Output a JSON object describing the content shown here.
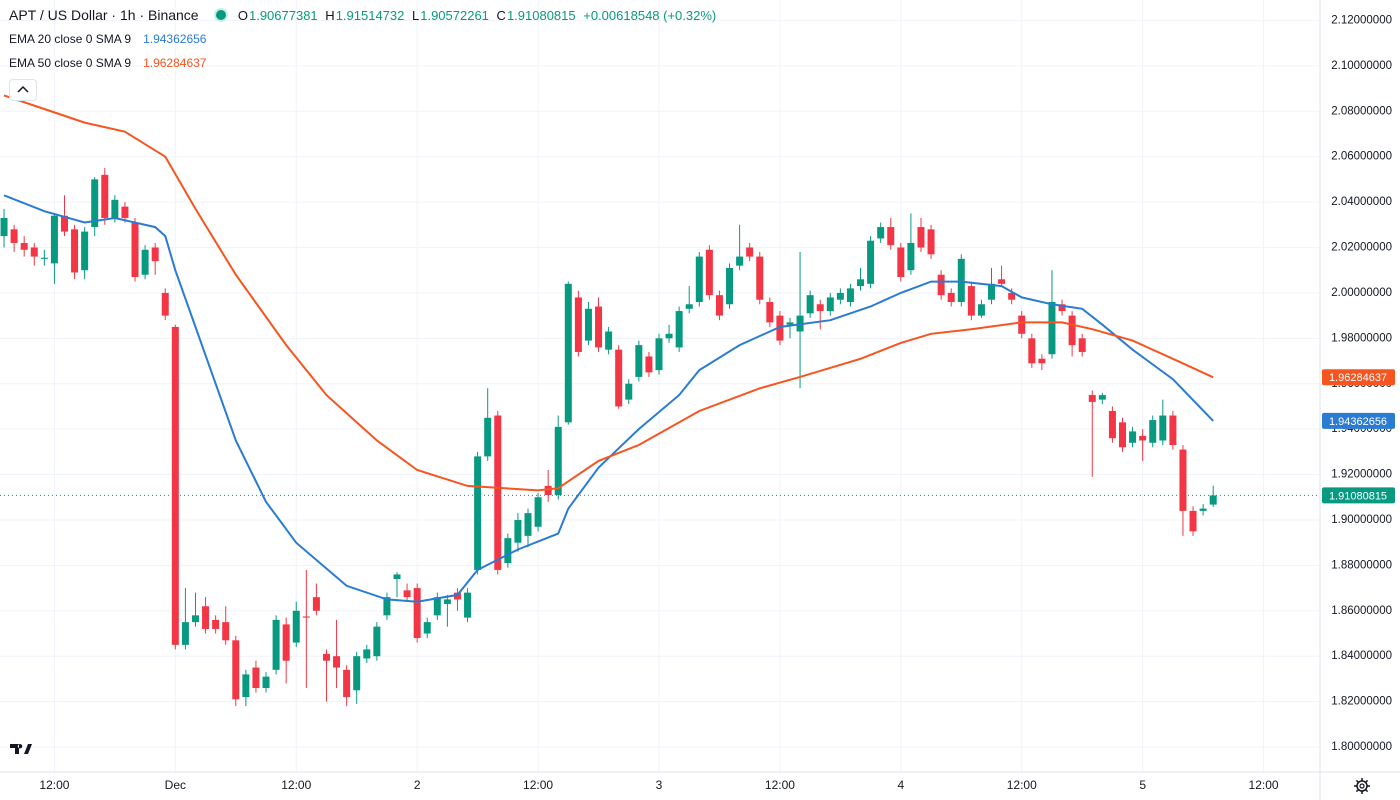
{
  "chart_data": {
    "type": "candlestick",
    "title": "APT / US Dollar · 1h · Binance",
    "header": {
      "o_label": "O",
      "o": "1.90677381",
      "h_label": "H",
      "h": "1.91514732",
      "l_label": "L",
      "l": "1.90572261",
      "c_label": "C",
      "c": "1.91080815",
      "change": "+0.00618548 (+0.32%)"
    },
    "up_color": "#089981",
    "down_color": "#f23645",
    "open": [
      2.025,
      2.028,
      2.022,
      2.02,
      2.015,
      2.013,
      2.034,
      2.028,
      2.01,
      2.029,
      2.052,
      2.033,
      2.038,
      2.031,
      2.008,
      2.02,
      2.0,
      1.985,
      1.845,
      1.855,
      1.862,
      1.856,
      1.855,
      1.847,
      1.822,
      1.835,
      1.826,
      1.834,
      1.854,
      1.846,
      1.8575,
      1.866,
      1.841,
      1.84,
      1.834,
      1.825,
      1.839,
      1.84,
      1.858,
      1.874,
      1.869,
      1.87,
      1.85,
      1.858,
      1.863,
      1.868,
      1.857,
      1.878,
      1.928,
      1.946,
      1.881,
      1.89,
      1.893,
      1.897,
      1.915,
      1.911,
      1.943,
      1.998,
      1.979,
      1.994,
      1.975,
      1.975,
      1.953,
      1.963,
      1.972,
      1.966,
      1.98,
      1.976,
      1.993,
      1.996,
      2.019,
      1.999,
      1.995,
      2.012,
      2.02,
      2.016,
      1.996,
      1.99,
      1.986,
      1.983,
      1.991,
      1.995,
      1.992,
      1.997,
      1.996,
      2.003,
      2.004,
      2.024,
      2.029,
      2.02,
      2.01,
      2.029,
      2.028,
      2.008,
      2.0,
      1.996,
      2.003,
      1.99,
      1.997,
      2.006,
      2.0,
      1.99,
      1.98,
      1.971,
      1.973,
      1.995,
      1.99,
      1.98,
      1.955,
      1.953,
      1.948,
      1.943,
      1.934,
      1.937,
      1.934,
      1.935,
      1.946,
      1.931,
      1.904,
      1.904,
      1.90677381
    ],
    "high": [
      2.037,
      2.03,
      2.025,
      2.022,
      2.019,
      2.035,
      2.043,
      2.03,
      2.029,
      2.051,
      2.055,
      2.043,
      2.04,
      2.033,
      2.021,
      2.022,
      2.002,
      1.986,
      1.87,
      1.868,
      1.866,
      1.858,
      1.862,
      1.849,
      1.834,
      1.838,
      1.833,
      1.858,
      1.857,
      1.864,
      1.878,
      1.872,
      1.843,
      1.856,
      1.836,
      1.842,
      1.845,
      1.855,
      1.868,
      1.877,
      1.872,
      1.872,
      1.857,
      1.868,
      1.867,
      1.87,
      1.87,
      1.93,
      1.958,
      1.948,
      1.894,
      1.903,
      1.905,
      1.912,
      1.922,
      1.946,
      2.005,
      2.001,
      1.996,
      1.998,
      1.985,
      1.977,
      1.962,
      1.979,
      1.974,
      1.982,
      1.986,
      1.994,
      2.003,
      2.018,
      2.021,
      2.001,
      2.013,
      2.03,
      2.022,
      2.018,
      1.998,
      1.992,
      1.989,
      2.018,
      2.001,
      1.997,
      2.0,
      2.002,
      2.004,
      2.011,
      2.025,
      2.031,
      2.033,
      2.022,
      2.035,
      2.033,
      2.03,
      2.01,
      2.002,
      2.017,
      2.005,
      1.997,
      2.011,
      2.012,
      2.002,
      1.992,
      1.982,
      1.973,
      2.01,
      1.997,
      1.992,
      1.982,
      1.957,
      1.956,
      1.95,
      1.945,
      1.941,
      1.94,
      1.946,
      1.953,
      1.948,
      1.933,
      1.906,
      1.907,
      1.91514732
    ],
    "low": [
      2.02,
      2.018,
      2.016,
      2.012,
      2.012,
      2.004,
      2.025,
      2.006,
      2.006,
      2.025,
      2.03,
      2.031,
      2.031,
      2.005,
      2.006,
      2.008,
      1.988,
      1.843,
      1.843,
      1.853,
      1.85,
      1.85,
      1.845,
      1.818,
      1.818,
      1.824,
      1.824,
      1.832,
      1.828,
      1.844,
      1.826,
      1.858,
      1.82,
      1.826,
      1.818,
      1.819,
      1.837,
      1.838,
      1.856,
      1.866,
      1.864,
      1.846,
      1.848,
      1.856,
      1.853,
      1.86,
      1.855,
      1.876,
      1.926,
      1.876,
      1.879,
      1.886,
      1.888,
      1.895,
      1.908,
      1.909,
      1.942,
      1.972,
      1.977,
      1.974,
      1.973,
      1.949,
      1.951,
      1.961,
      1.963,
      1.964,
      1.978,
      1.974,
      1.991,
      1.994,
      1.997,
      1.988,
      1.993,
      2.01,
      2.014,
      1.995,
      1.985,
      1.977,
      1.98,
      1.958,
      1.989,
      1.984,
      1.99,
      1.995,
      1.994,
      2.001,
      2.002,
      2.022,
      2.019,
      2.005,
      2.008,
      2.018,
      2.015,
      1.997,
      1.994,
      1.994,
      1.988,
      1.989,
      1.995,
      2.003,
      1.995,
      1.98,
      1.967,
      1.966,
      1.971,
      1.99,
      1.972,
      1.972,
      1.919,
      1.951,
      1.934,
      1.93,
      1.932,
      1.926,
      1.932,
      1.933,
      1.931,
      1.893,
      1.893,
      1.902,
      1.90572261
    ],
    "close": [
      2.033,
      2.022,
      2.019,
      2.016,
      2.0155,
      2.034,
      2.027,
      2.009,
      2.027,
      2.05,
      2.033,
      2.041,
      2.033,
      2.007,
      2.019,
      2.014,
      1.99,
      1.845,
      1.855,
      1.858,
      1.852,
      1.852,
      1.847,
      1.821,
      1.832,
      1.826,
      1.831,
      1.856,
      1.838,
      1.86,
      1.857,
      1.86,
      1.838,
      1.835,
      1.822,
      1.84,
      1.843,
      1.853,
      1.866,
      1.876,
      1.866,
      1.848,
      1.855,
      1.866,
      1.865,
      1.865,
      1.868,
      1.928,
      1.945,
      1.878,
      1.892,
      1.9,
      1.903,
      1.91,
      1.911,
      1.941,
      2.004,
      1.974,
      1.993,
      1.976,
      1.983,
      1.95,
      1.96,
      1.977,
      1.965,
      1.98,
      1.982,
      1.992,
      1.995,
      2.016,
      1.999,
      1.99,
      2.011,
      2.016,
      2.016,
      1.997,
      1.987,
      1.979,
      1.987,
      1.99,
      1.999,
      1.992,
      1.998,
      2.0,
      2.002,
      2.006,
      2.023,
      2.029,
      2.021,
      2.007,
      2.022,
      2.02,
      2.017,
      1.999,
      1.996,
      2.015,
      1.99,
      1.995,
      2.004,
      2.004,
      1.997,
      1.982,
      1.969,
      1.969,
      1.996,
      1.992,
      1.977,
      1.974,
      1.952,
      1.955,
      1.936,
      1.932,
      1.939,
      1.935,
      1.944,
      1.946,
      1.933,
      1.904,
      1.895,
      1.905,
      1.91080815
    ],
    "indicators": [
      {
        "name": "EMA 20 close 0 SMA 9",
        "color": "#2a7bd3",
        "value_label": "1.94362656",
        "x": [
          0,
          4,
          8,
          11,
          15,
          16,
          17,
          19,
          23,
          26,
          29,
          34,
          38,
          41,
          45,
          47,
          51,
          55,
          56,
          59,
          63,
          67,
          69,
          73,
          77,
          82,
          86,
          89,
          92,
          95,
          99,
          101,
          104,
          107,
          109,
          112,
          116,
          120
        ],
        "values": [
          2.043,
          2.036,
          2.031,
          2.033,
          2.029,
          2.025,
          2.01,
          1.985,
          1.935,
          1.908,
          1.89,
          1.871,
          1.865,
          1.864,
          1.867,
          1.878,
          1.887,
          1.894,
          1.905,
          1.923,
          1.94,
          1.955,
          1.966,
          1.977,
          1.985,
          1.988,
          1.994,
          2.0,
          2.005,
          2.005,
          2.003,
          1.998,
          1.995,
          1.993,
          1.986,
          1.975,
          1.962,
          1.94362656
        ]
      },
      {
        "name": "EMA 50 close 0 SMA 9",
        "color": "#f7541f",
        "value_label": "1.96284637",
        "x": [
          0,
          4,
          8,
          12,
          16,
          19,
          23,
          28,
          32,
          37,
          41,
          46,
          53,
          55,
          59,
          63,
          69,
          75,
          79,
          85,
          89,
          92,
          96,
          101,
          105,
          108,
          112,
          116,
          120
        ],
        "values": [
          2.087,
          2.081,
          2.075,
          2.071,
          2.06,
          2.037,
          2.008,
          1.977,
          1.955,
          1.935,
          1.922,
          1.915,
          1.913,
          1.914,
          1.926,
          1.933,
          1.948,
          1.958,
          1.963,
          1.971,
          1.978,
          1.982,
          1.984,
          1.987,
          1.987,
          1.984,
          1.979,
          1.971,
          1.96284637
        ]
      }
    ],
    "xlim": [
      -0.4,
      130.6
    ],
    "xticks": [
      {
        "value": 5,
        "label": "12:00"
      },
      {
        "value": 17,
        "label": "Dec"
      },
      {
        "value": 29,
        "label": "12:00"
      },
      {
        "value": 41,
        "label": "2"
      },
      {
        "value": 53,
        "label": "12:00"
      },
      {
        "value": 65,
        "label": "3"
      },
      {
        "value": 77,
        "label": "12:00"
      },
      {
        "value": 89,
        "label": "4"
      },
      {
        "value": 101,
        "label": "12:00"
      },
      {
        "value": 113,
        "label": "5"
      },
      {
        "value": 125,
        "label": "12:00"
      }
    ],
    "ylim": [
      1.789,
      2.129
    ],
    "yticks": [
      {
        "value": 1.8,
        "label": "1.80000000"
      },
      {
        "value": 1.82,
        "label": "1.82000000"
      },
      {
        "value": 1.84,
        "label": "1.84000000"
      },
      {
        "value": 1.86,
        "label": "1.86000000"
      },
      {
        "value": 1.88,
        "label": "1.88000000"
      },
      {
        "value": 1.9,
        "label": "1.90000000"
      },
      {
        "value": 1.92,
        "label": "1.92000000"
      },
      {
        "value": 1.94,
        "label": "1.94000000"
      },
      {
        "value": 1.96,
        "label": "1.96000000"
      },
      {
        "value": 1.98,
        "label": "1.98000000"
      },
      {
        "value": 2.0,
        "label": "2.00000000"
      },
      {
        "value": 2.02,
        "label": "2.02000000"
      },
      {
        "value": 2.04,
        "label": "2.04000000"
      },
      {
        "value": 2.06,
        "label": "2.06000000"
      },
      {
        "value": 2.08,
        "label": "2.08000000"
      },
      {
        "value": 2.1,
        "label": "2.10000000"
      },
      {
        "value": 2.12,
        "label": "2.12000000"
      }
    ],
    "grid": true
  }
}
